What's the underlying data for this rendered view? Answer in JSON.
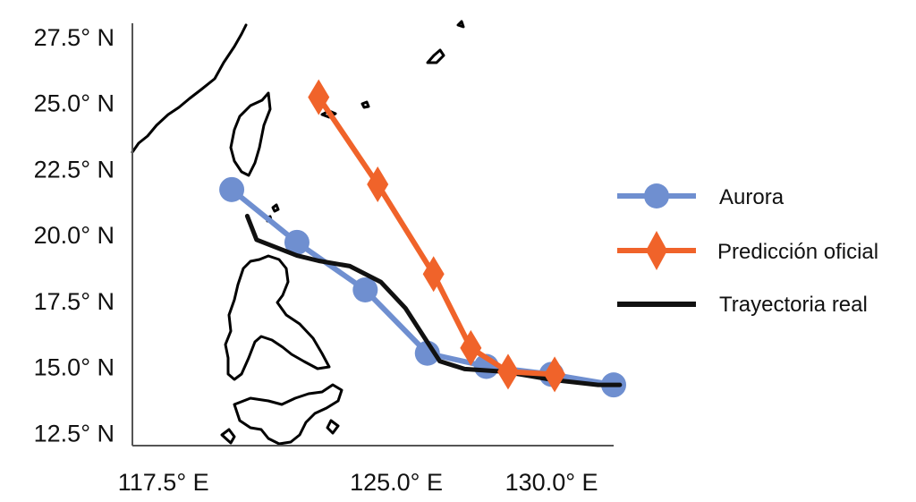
{
  "map": {
    "x_ticks": [
      {
        "value": 117.5,
        "label": "117.5° E"
      },
      {
        "value": 125.0,
        "label": "125.0° E"
      },
      {
        "value": 130.0,
        "label": "130.0° E"
      }
    ],
    "y_ticks": [
      {
        "value": 27.5,
        "label": "27.5° N"
      },
      {
        "value": 25.0,
        "label": "25.0° N"
      },
      {
        "value": 22.5,
        "label": "22.5° N"
      },
      {
        "value": 20.0,
        "label": "20.0° N"
      },
      {
        "value": 17.5,
        "label": "17.5° N"
      },
      {
        "value": 15.0,
        "label": "15.0° N"
      },
      {
        "value": 12.5,
        "label": "12.5° N"
      }
    ],
    "lon_range": [
      116.5,
      132.0
    ],
    "lat_range": [
      12.0,
      28.0
    ]
  },
  "tracks": [
    {
      "name": "Aurora",
      "color": "#6f8fd0",
      "marker": "circle",
      "points": [
        [
          119.7,
          21.7
        ],
        [
          121.8,
          19.7
        ],
        [
          124.0,
          17.9
        ],
        [
          126.0,
          15.5
        ],
        [
          127.9,
          15.0
        ],
        [
          130.0,
          14.7
        ],
        [
          132.0,
          14.3
        ]
      ]
    },
    {
      "name": "Predicción oficial",
      "color": "#f0632a",
      "marker": "diamond",
      "points": [
        [
          122.5,
          25.2
        ],
        [
          124.4,
          21.9
        ],
        [
          126.2,
          18.5
        ],
        [
          127.4,
          15.7
        ],
        [
          128.6,
          14.8
        ],
        [
          130.1,
          14.7
        ]
      ]
    },
    {
      "name": "Trayectoria real",
      "color": "#111111",
      "marker": "none",
      "points": [
        [
          120.2,
          20.7
        ],
        [
          120.5,
          19.8
        ],
        [
          121.8,
          19.2
        ],
        [
          122.5,
          19.0
        ],
        [
          123.5,
          18.8
        ],
        [
          124.5,
          18.2
        ],
        [
          125.3,
          17.2
        ],
        [
          125.9,
          16.1
        ],
        [
          126.4,
          15.2
        ],
        [
          127.2,
          14.9
        ],
        [
          128.5,
          14.8
        ],
        [
          130.0,
          14.5
        ],
        [
          131.5,
          14.3
        ],
        [
          132.2,
          14.3
        ]
      ]
    }
  ],
  "legend": {
    "items": [
      {
        "label": "Aurora"
      },
      {
        "label": "Predicción oficial"
      },
      {
        "label": "Trayectoria real"
      }
    ]
  }
}
